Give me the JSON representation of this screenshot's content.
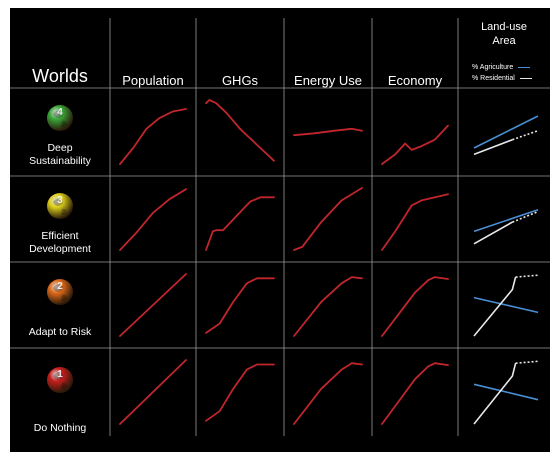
{
  "header": {
    "worlds": "Worlds",
    "columns": [
      "Population",
      "GHGs",
      "Energy Use",
      "Economy"
    ],
    "landuse_title_line1": "Land-use",
    "landuse_title_line2": "Area"
  },
  "legend": {
    "agriculture": "% Agriculture",
    "residential": "% Residential",
    "agriculture_color": "#4a8fd6",
    "residential_color": "#e8e8e8"
  },
  "colors": {
    "trend": "#c0262c",
    "grid": "#9a9a9a",
    "background": "#000000"
  },
  "rows": [
    {
      "number": "4",
      "label_line1": "Deep",
      "label_line2": "Sustainability",
      "ball_color": "#3aa83a",
      "ball_icon": "globe-ball-icon"
    },
    {
      "number": "3",
      "label_line1": "Efficient",
      "label_line2": "Development",
      "ball_color": "#e0d21a",
      "ball_icon": "globe-ball-icon"
    },
    {
      "number": "2",
      "label_line1": "Adapt to Risk",
      "label_line2": "",
      "ball_color": "#e06a18",
      "ball_icon": "globe-ball-icon"
    },
    {
      "number": "1",
      "label_line1": "Do Nothing",
      "label_line2": "",
      "ball_color": "#c81e1e",
      "ball_icon": "globe-ball-icon"
    }
  ],
  "chart_data": {
    "type": "line",
    "note_rows": [
      "Deep Sustainability",
      "Efficient Development",
      "Adapt to Risk",
      "Do Nothing"
    ],
    "note_columns": [
      "Population",
      "GHGs",
      "Energy Use",
      "Economy",
      "Land-use Area"
    ],
    "series_by_row": [
      {
        "population": [
          [
            0,
            0
          ],
          [
            20,
            0.25
          ],
          [
            40,
            0.55
          ],
          [
            60,
            0.72
          ],
          [
            80,
            0.82
          ],
          [
            100,
            0.86
          ]
        ],
        "ghgs": [
          [
            0,
            0.95
          ],
          [
            5,
            1
          ],
          [
            15,
            0.95
          ],
          [
            30,
            0.8
          ],
          [
            50,
            0.55
          ],
          [
            70,
            0.35
          ],
          [
            90,
            0.15
          ],
          [
            100,
            0.05
          ]
        ],
        "energy": [
          [
            0,
            0.45
          ],
          [
            30,
            0.48
          ],
          [
            60,
            0.52
          ],
          [
            85,
            0.55
          ],
          [
            100,
            0.52
          ]
        ],
        "economy": [
          [
            0,
            0
          ],
          [
            20,
            0.15
          ],
          [
            35,
            0.32
          ],
          [
            45,
            0.22
          ],
          [
            60,
            0.28
          ],
          [
            80,
            0.38
          ],
          [
            100,
            0.6
          ]
        ],
        "agriculture": [
          [
            0,
            0.25
          ],
          [
            100,
            0.75
          ]
        ],
        "residential": [
          [
            0,
            0.15
          ],
          [
            60,
            0.38
          ],
          [
            100,
            0.52
          ]
        ]
      },
      {
        "population": [
          [
            0,
            0
          ],
          [
            25,
            0.28
          ],
          [
            50,
            0.6
          ],
          [
            75,
            0.82
          ],
          [
            100,
            0.98
          ]
        ],
        "ghgs": [
          [
            0,
            0
          ],
          [
            10,
            0.3
          ],
          [
            15,
            0.32
          ],
          [
            25,
            0.32
          ],
          [
            45,
            0.55
          ],
          [
            65,
            0.78
          ],
          [
            80,
            0.85
          ],
          [
            100,
            0.85
          ]
        ],
        "energy": [
          [
            0,
            0
          ],
          [
            12,
            0.05
          ],
          [
            40,
            0.45
          ],
          [
            70,
            0.8
          ],
          [
            100,
            1
          ]
        ],
        "economy": [
          [
            0,
            0
          ],
          [
            20,
            0.3
          ],
          [
            45,
            0.72
          ],
          [
            60,
            0.8
          ],
          [
            100,
            0.9
          ]
        ],
        "agriculture": [
          [
            0,
            0.3
          ],
          [
            100,
            0.65
          ]
        ],
        "residential": [
          [
            0,
            0.1
          ],
          [
            60,
            0.45
          ],
          [
            100,
            0.62
          ]
        ]
      },
      {
        "population": [
          [
            0,
            0
          ],
          [
            50,
            0.5
          ],
          [
            100,
            1
          ]
        ],
        "ghgs": [
          [
            0,
            0.05
          ],
          [
            20,
            0.2
          ],
          [
            40,
            0.55
          ],
          [
            60,
            0.85
          ],
          [
            75,
            0.93
          ],
          [
            100,
            0.93
          ]
        ],
        "energy": [
          [
            0,
            0
          ],
          [
            40,
            0.55
          ],
          [
            70,
            0.85
          ],
          [
            85,
            0.95
          ],
          [
            100,
            0.93
          ]
        ],
        "economy": [
          [
            0,
            0
          ],
          [
            25,
            0.35
          ],
          [
            50,
            0.7
          ],
          [
            70,
            0.9
          ],
          [
            80,
            0.95
          ],
          [
            100,
            0.92
          ]
        ],
        "agriculture": [
          [
            0,
            0.62
          ],
          [
            100,
            0.38
          ]
        ],
        "residential": [
          [
            0,
            0
          ],
          [
            60,
            0.75
          ],
          [
            65,
            0.95
          ],
          [
            100,
            0.98
          ]
        ]
      },
      {
        "population": [
          [
            0,
            0
          ],
          [
            50,
            0.5
          ],
          [
            100,
            1
          ]
        ],
        "ghgs": [
          [
            0,
            0.05
          ],
          [
            20,
            0.2
          ],
          [
            40,
            0.55
          ],
          [
            60,
            0.85
          ],
          [
            75,
            0.93
          ],
          [
            100,
            0.93
          ]
        ],
        "energy": [
          [
            0,
            0
          ],
          [
            40,
            0.55
          ],
          [
            70,
            0.85
          ],
          [
            85,
            0.95
          ],
          [
            100,
            0.93
          ]
        ],
        "economy": [
          [
            0,
            0
          ],
          [
            25,
            0.35
          ],
          [
            50,
            0.7
          ],
          [
            70,
            0.9
          ],
          [
            80,
            0.95
          ],
          [
            100,
            0.92
          ]
        ],
        "agriculture": [
          [
            0,
            0.62
          ],
          [
            100,
            0.38
          ]
        ],
        "residential": [
          [
            0,
            0
          ],
          [
            60,
            0.75
          ],
          [
            65,
            0.95
          ],
          [
            100,
            0.98
          ]
        ]
      }
    ]
  }
}
